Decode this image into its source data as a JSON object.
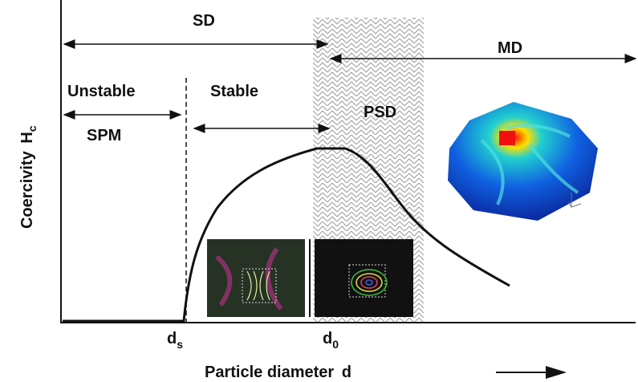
{
  "regions": {
    "sd": "SD",
    "md": "MD",
    "unstable": "Unstable",
    "stable": "Stable",
    "spm": "SPM",
    "psd": "PSD"
  },
  "y_axis": {
    "label": "Coercivity",
    "symbol": "H",
    "subscript": "c"
  },
  "x_axis": {
    "label": "Particle diameter",
    "symbol": "d"
  },
  "markers": [
    {
      "symbol": "d",
      "subscript": "s"
    },
    {
      "symbol": "d",
      "subscript": "0"
    }
  ]
}
